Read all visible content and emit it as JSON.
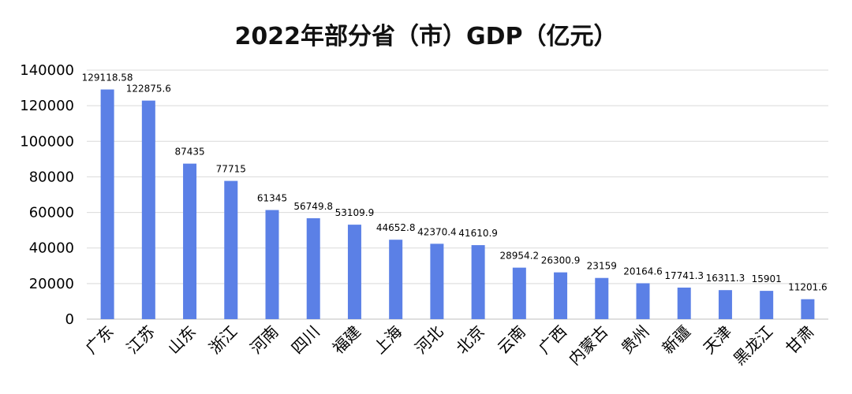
{
  "chart_data": {
    "type": "bar",
    "title": "2022年部分省（市）GDP（亿元）",
    "xlabel": "",
    "ylabel": "",
    "ylim": [
      0,
      140000
    ],
    "yticks": [
      0,
      20000,
      40000,
      60000,
      80000,
      100000,
      120000,
      140000
    ],
    "grid": true,
    "legend": "none",
    "bar_color": "#5b80e6",
    "categories": [
      "广东",
      "江苏",
      "山东",
      "浙江",
      "河南",
      "四川",
      "福建",
      "上海",
      "河北",
      "北京",
      "云南",
      "广西",
      "内蒙古",
      "贵州",
      "新疆",
      "天津",
      "黑龙江",
      "甘肃"
    ],
    "values": [
      129118.58,
      122875.6,
      87435,
      77715,
      61345,
      56749.8,
      53109.9,
      44652.8,
      42370.4,
      41610.9,
      28954.2,
      26300.9,
      23159,
      20164.6,
      17741.3,
      16311.3,
      15901,
      11201.6
    ],
    "data_labels": [
      "129118.58",
      "122875.6",
      "87435",
      "77715",
      "61345",
      "56749.8",
      "53109.9",
      "44652.8",
      "42370.4",
      "41610.9",
      "28954.2",
      "26300.9",
      "23159",
      "20164.6",
      "17741.3",
      "16311.3",
      "15901",
      "11201.6"
    ]
  }
}
